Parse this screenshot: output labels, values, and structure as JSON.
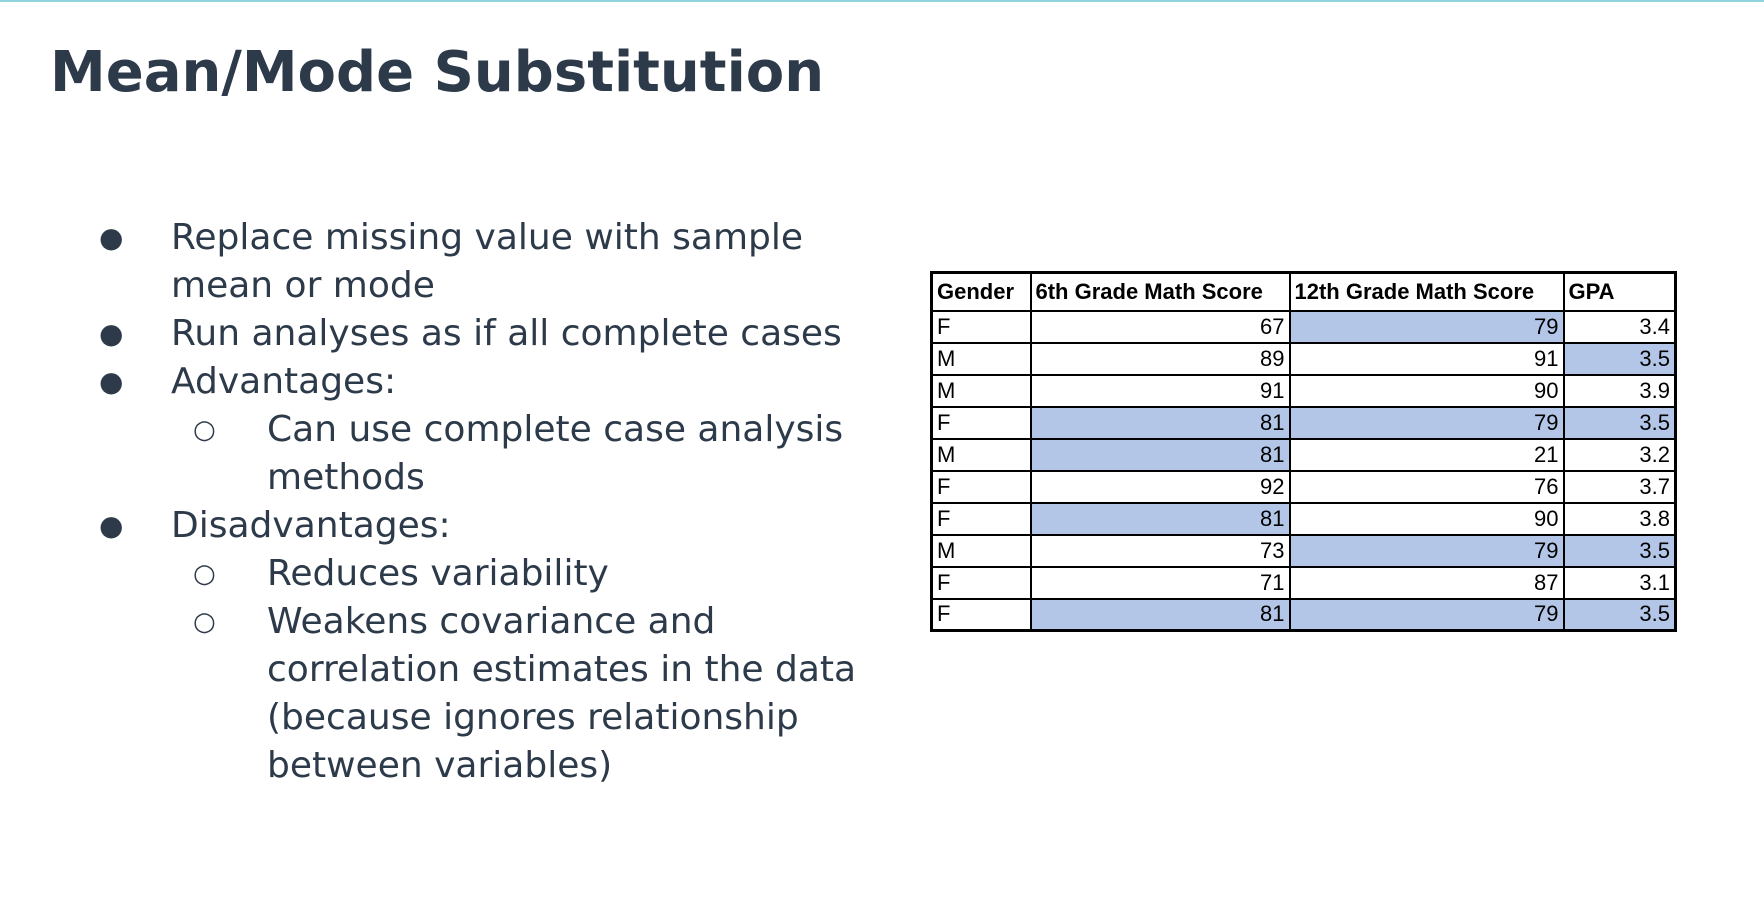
{
  "slide": {
    "title": "Mean/Mode Substitution",
    "bullets": [
      {
        "level": 1,
        "marker": "●",
        "text": "Replace missing value with sample mean or mode"
      },
      {
        "level": 1,
        "marker": "●",
        "text": "Run analyses as if all complete cases"
      },
      {
        "level": 1,
        "marker": "●",
        "text": "Advantages:"
      },
      {
        "level": 2,
        "marker": "○",
        "text": "Can use complete case analysis methods"
      },
      {
        "level": 1,
        "marker": "●",
        "text": "Disadvantages:"
      },
      {
        "level": 2,
        "marker": "○",
        "text": "Reduces variability"
      },
      {
        "level": 2,
        "marker": "○",
        "text": "Weakens covariance and correlation estimates in the data (because ignores relationship between variables)"
      }
    ]
  },
  "table": {
    "headers": [
      "Gender",
      "6th Grade Math Score",
      "12th Grade Math Score",
      "GPA"
    ],
    "rows": [
      {
        "cells": [
          "F",
          "67",
          "79",
          "3.4"
        ],
        "imputed": [
          false,
          false,
          true,
          false
        ]
      },
      {
        "cells": [
          "M",
          "89",
          "91",
          "3.5"
        ],
        "imputed": [
          false,
          false,
          false,
          true
        ]
      },
      {
        "cells": [
          "M",
          "91",
          "90",
          "3.9"
        ],
        "imputed": [
          false,
          false,
          false,
          false
        ]
      },
      {
        "cells": [
          "F",
          "81",
          "79",
          "3.5"
        ],
        "imputed": [
          false,
          true,
          true,
          true
        ]
      },
      {
        "cells": [
          "M",
          "81",
          "21",
          "3.2"
        ],
        "imputed": [
          false,
          true,
          false,
          false
        ]
      },
      {
        "cells": [
          "F",
          "92",
          "76",
          "3.7"
        ],
        "imputed": [
          false,
          false,
          false,
          false
        ]
      },
      {
        "cells": [
          "F",
          "81",
          "90",
          "3.8"
        ],
        "imputed": [
          false,
          true,
          false,
          false
        ]
      },
      {
        "cells": [
          "M",
          "73",
          "79",
          "3.5"
        ],
        "imputed": [
          false,
          false,
          true,
          true
        ]
      },
      {
        "cells": [
          "F",
          "71",
          "87",
          "3.1"
        ],
        "imputed": [
          false,
          false,
          false,
          false
        ]
      },
      {
        "cells": [
          "F",
          "81",
          "79",
          "3.5"
        ],
        "imputed": [
          false,
          true,
          true,
          true
        ]
      }
    ],
    "highlight_color": "#b4c6e7"
  },
  "colors": {
    "text": "#2d3a4a",
    "top_rule": "#8fd3dc"
  }
}
